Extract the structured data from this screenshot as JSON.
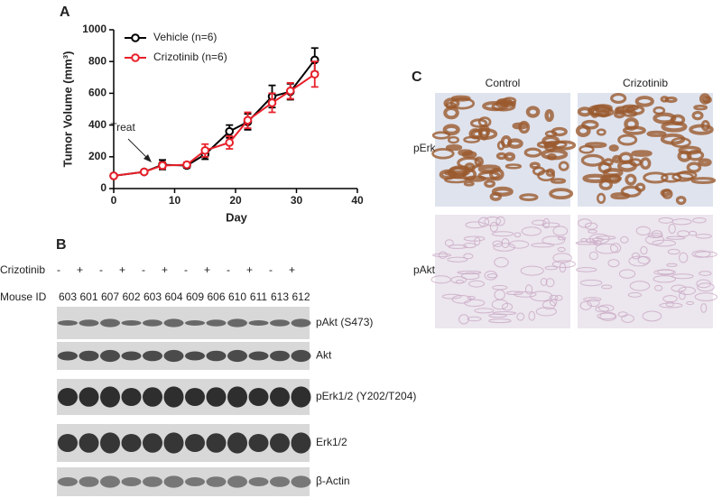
{
  "chart_data": {
    "type": "line",
    "ylabel": "Tumor Volume (mm³)",
    "xlabel": "Day",
    "annotation": "Treat",
    "x": [
      0,
      5,
      8,
      12,
      15,
      19,
      22,
      26,
      29,
      33
    ],
    "series": [
      {
        "name": "Vehicle (n=6)",
        "color": "#000000",
        "values": [
          80,
          105,
          150,
          145,
          215,
          360,
          420,
          580,
          610,
          810
        ],
        "errors": [
          10,
          10,
          30,
          15,
          30,
          40,
          50,
          70,
          50,
          75
        ]
      },
      {
        "name": "Crizotinib (n=6)",
        "color": "#e8202a",
        "values": [
          80,
          105,
          145,
          150,
          240,
          290,
          430,
          540,
          615,
          720
        ],
        "errors": [
          10,
          10,
          20,
          15,
          40,
          40,
          50,
          60,
          50,
          80
        ]
      }
    ],
    "xlim": [
      0,
      40
    ],
    "xticks": [
      0,
      10,
      20,
      30,
      40
    ],
    "ylim": [
      0,
      1000
    ],
    "yticks": [
      0,
      200,
      400,
      600,
      800,
      1000
    ]
  },
  "panel_labels": [
    "A",
    "B",
    "C"
  ],
  "western_blot": {
    "treatment_label": "Crizotinib",
    "treatment": [
      "-",
      "+",
      "-",
      "+",
      "-",
      "+",
      "-",
      "+",
      "-",
      "+",
      "-",
      "+"
    ],
    "mouse_label": "Mouse ID",
    "mouse_ids": [
      "603",
      "601",
      "607",
      "602",
      "603",
      "604",
      "609",
      "606",
      "610",
      "611",
      "613",
      "612"
    ],
    "bands": [
      "pAkt (S473)",
      "Akt",
      "pErk1/2 (Y202/T204)",
      "Erk1/2",
      "β-Actin"
    ]
  },
  "ihc": {
    "columns": [
      "Control",
      "Crizotinib"
    ],
    "rows": [
      "pErk",
      "pAkt"
    ]
  }
}
